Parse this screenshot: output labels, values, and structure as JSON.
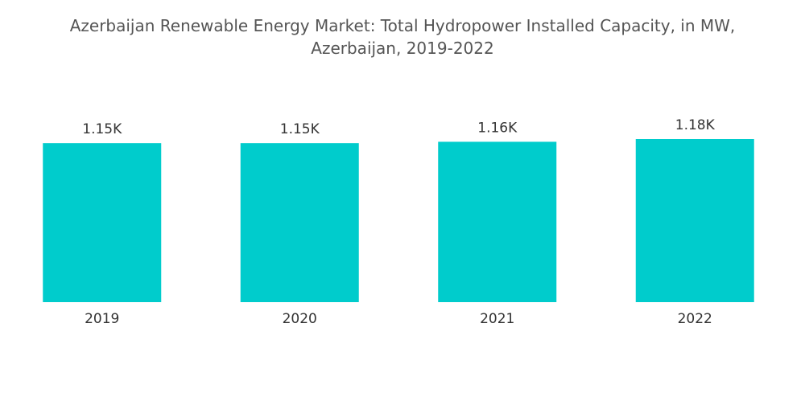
{
  "chart_data": {
    "type": "bar",
    "title": "Azerbaijan Renewable Energy Market: Total Hydropower Installed Capacity, in MW, Azerbaijan, 2019-2022",
    "categories": [
      "2019",
      "2020",
      "2021",
      "2022"
    ],
    "values": [
      1150,
      1150,
      1160,
      1180
    ],
    "value_labels": [
      "1.15K",
      "1.15K",
      "1.16K",
      "1.18K"
    ],
    "color": "#00cccc"
  }
}
